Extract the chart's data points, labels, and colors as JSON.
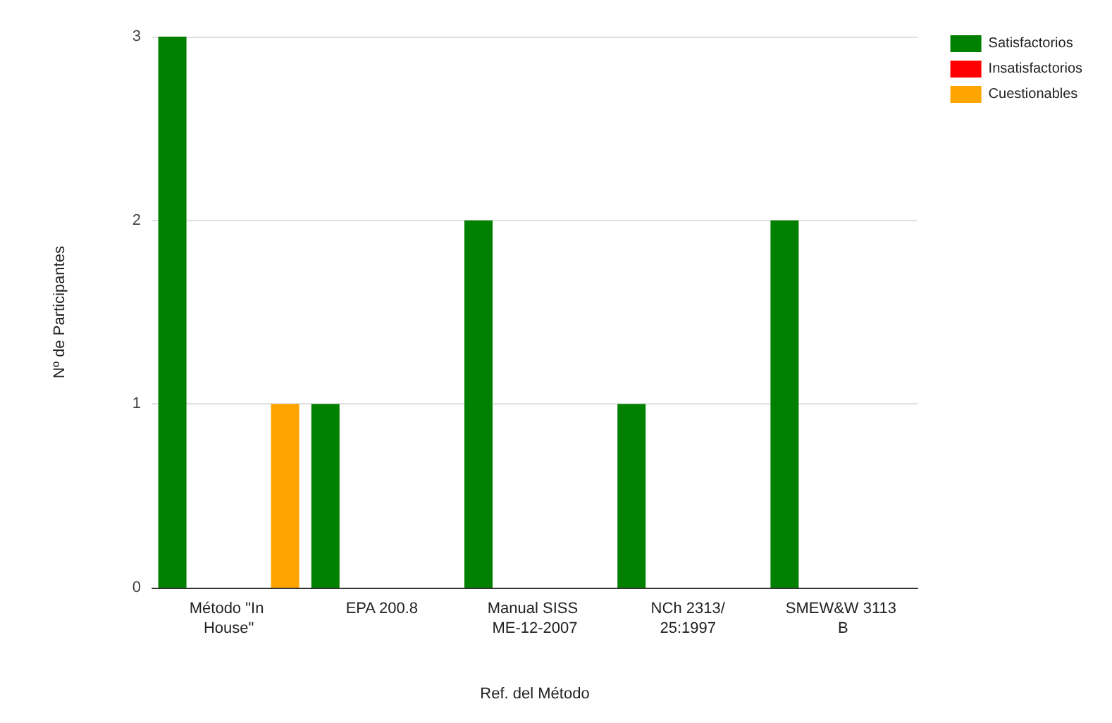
{
  "chart_data": {
    "type": "bar",
    "xlabel": "Ref. del Método",
    "ylabel": "Nº de Participantes",
    "categories": [
      "Método \"In House\"",
      "EPA 200.8",
      "Manual SISS ME-12-2007",
      "NCh 2313/25:1997",
      "SMEW&W 3113 B"
    ],
    "series": [
      {
        "name": "Satisfactorios",
        "color": "#008000",
        "values": [
          3,
          1,
          2,
          1,
          2
        ]
      },
      {
        "name": "Insatisfactorios",
        "color": "#ff0000",
        "values": [
          0,
          0,
          0,
          0,
          0
        ]
      },
      {
        "name": "Cuestionables",
        "color": "#ffa500",
        "values": [
          1,
          0,
          0,
          0,
          0
        ]
      }
    ],
    "ylim": [
      0,
      3
    ],
    "yticks": [
      0,
      1,
      2,
      3
    ],
    "grid": "y",
    "legend": "top right"
  }
}
